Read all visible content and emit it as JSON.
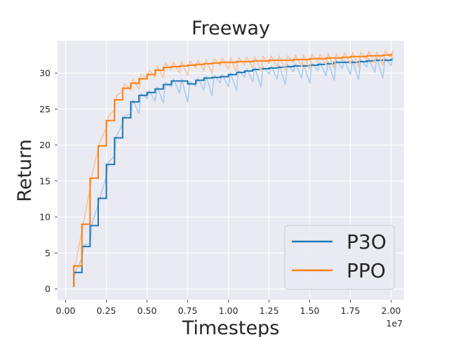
{
  "chart_data": {
    "type": "line",
    "title": "Freeway",
    "xlabel": "Timesteps",
    "ylabel": "Return",
    "x_offset_label": "1e7",
    "xlim": [
      -0.05,
      2.08
    ],
    "ylim": [
      -1.5,
      34.5
    ],
    "x_ticks": [
      0.0,
      0.25,
      0.5,
      0.75,
      1.0,
      1.25,
      1.5,
      1.75,
      2.0
    ],
    "x_tick_labels": [
      "0.00",
      "0.25",
      "0.50",
      "0.75",
      "1.00",
      "1.25",
      "1.50",
      "1.75",
      "2.00"
    ],
    "y_ticks": [
      0,
      5,
      10,
      15,
      20,
      25,
      30
    ],
    "y_tick_labels": [
      "0",
      "5",
      "10",
      "15",
      "20",
      "25",
      "30"
    ],
    "grid": true,
    "legend_position": "bottom-right",
    "x": [
      0.05,
      0.1,
      0.15,
      0.2,
      0.25,
      0.3,
      0.35,
      0.4,
      0.45,
      0.5,
      0.55,
      0.6,
      0.65,
      0.7,
      0.75,
      0.8,
      0.85,
      0.9,
      0.95,
      1.0,
      1.05,
      1.1,
      1.15,
      1.2,
      1.25,
      1.3,
      1.35,
      1.4,
      1.45,
      1.5,
      1.55,
      1.6,
      1.65,
      1.7,
      1.75,
      1.8,
      1.85,
      1.9,
      1.95,
      2.0
    ],
    "series": [
      {
        "name": "P3O",
        "color": "#1f77b4",
        "light_color": "#a9cdee",
        "values": [
          2.3,
          5.9,
          8.8,
          12.6,
          17.3,
          21.0,
          23.8,
          26.0,
          26.9,
          27.3,
          27.8,
          28.4,
          28.9,
          28.9,
          28.5,
          29.0,
          29.3,
          29.4,
          29.5,
          29.8,
          30.1,
          30.3,
          30.5,
          30.6,
          30.7,
          30.8,
          30.9,
          31.0,
          31.0,
          31.1,
          31.2,
          31.3,
          31.5,
          31.5,
          31.5,
          31.6,
          31.7,
          31.8,
          31.8,
          31.9
        ]
      },
      {
        "name": "PPO",
        "color": "#ff7f0e",
        "light_color": "#f8c59b",
        "values": [
          3.2,
          9.0,
          15.4,
          19.9,
          23.4,
          26.3,
          27.9,
          28.6,
          29.2,
          29.8,
          30.4,
          30.8,
          30.9,
          31.0,
          31.1,
          31.2,
          31.3,
          31.4,
          31.5,
          31.5,
          31.6,
          31.6,
          31.7,
          31.7,
          31.8,
          31.8,
          31.8,
          31.9,
          31.9,
          32.0,
          32.0,
          32.1,
          32.1,
          32.2,
          32.3,
          32.3,
          32.4,
          32.4,
          32.5,
          32.6
        ]
      }
    ]
  }
}
